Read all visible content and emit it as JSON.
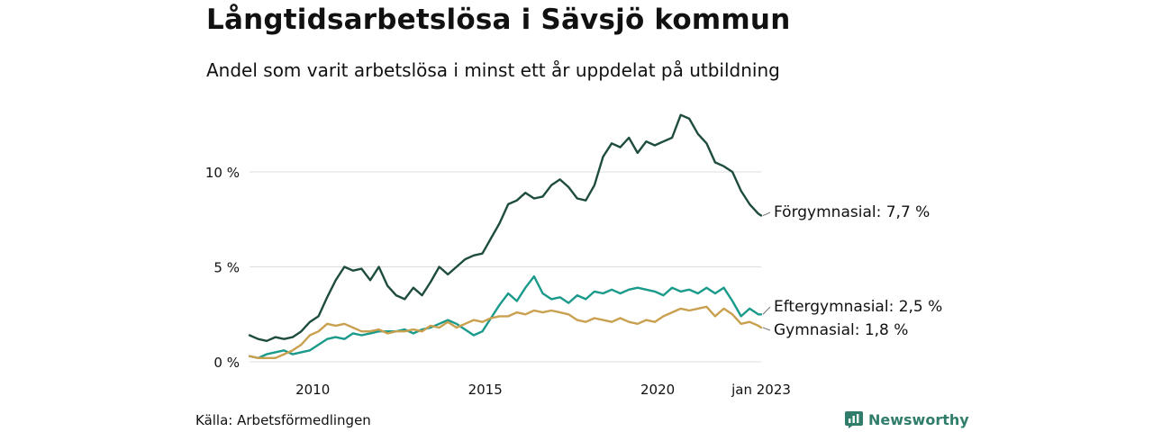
{
  "header": {
    "title": "Långtidsarbetslösa i Sävsjö kommun",
    "subtitle": "Andel som varit arbetslösa i minst ett år uppdelat på utbildning"
  },
  "footer": {
    "source": "Källa: Arbetsförmedlingen",
    "brand": "Newsworthy"
  },
  "colors": {
    "forgymnasial": "#1e4d3e",
    "eftergymnasial": "#1a9a8a",
    "gymnasial": "#c9a04f",
    "grid": "#dddddd",
    "brand": "#2f7d6a"
  },
  "chart_data": {
    "type": "line",
    "x_unit": "month",
    "x_range": [
      "2008-03",
      "2023-01"
    ],
    "y_unit": "%",
    "ylim": [
      0,
      14
    ],
    "y_ticks": [
      {
        "value": 0,
        "label": "0 %"
      },
      {
        "value": 5,
        "label": "5 %"
      },
      {
        "value": 10,
        "label": "10 %"
      }
    ],
    "x_ticks": [
      {
        "value": "2010-01",
        "label": "2010"
      },
      {
        "value": "2015-01",
        "label": "2015"
      },
      {
        "value": "2020-01",
        "label": "2020"
      },
      {
        "value": "2023-01",
        "label": "jan 2023"
      }
    ],
    "grid": true,
    "legend": "end-labels",
    "series": [
      {
        "key": "forgymnasial",
        "name": "Förgymnasial",
        "end_label": "Förgymnasial: 7,7 %",
        "color": "#1e4d3e",
        "points": [
          [
            "2008-03",
            1.4
          ],
          [
            "2008-06",
            1.2
          ],
          [
            "2008-09",
            1.1
          ],
          [
            "2008-12",
            1.3
          ],
          [
            "2009-03",
            1.2
          ],
          [
            "2009-06",
            1.3
          ],
          [
            "2009-09",
            1.6
          ],
          [
            "2009-12",
            2.1
          ],
          [
            "2010-03",
            2.4
          ],
          [
            "2010-06",
            3.4
          ],
          [
            "2010-09",
            4.3
          ],
          [
            "2010-12",
            5.0
          ],
          [
            "2011-03",
            4.8
          ],
          [
            "2011-06",
            4.9
          ],
          [
            "2011-09",
            4.3
          ],
          [
            "2011-12",
            5.0
          ],
          [
            "2012-03",
            4.0
          ],
          [
            "2012-06",
            3.5
          ],
          [
            "2012-09",
            3.3
          ],
          [
            "2012-12",
            3.9
          ],
          [
            "2013-03",
            3.5
          ],
          [
            "2013-06",
            4.2
          ],
          [
            "2013-09",
            5.0
          ],
          [
            "2013-12",
            4.6
          ],
          [
            "2014-03",
            5.0
          ],
          [
            "2014-06",
            5.4
          ],
          [
            "2014-09",
            5.6
          ],
          [
            "2014-12",
            5.7
          ],
          [
            "2015-03",
            6.5
          ],
          [
            "2015-06",
            7.3
          ],
          [
            "2015-09",
            8.3
          ],
          [
            "2015-12",
            8.5
          ],
          [
            "2016-03",
            8.9
          ],
          [
            "2016-06",
            8.6
          ],
          [
            "2016-09",
            8.7
          ],
          [
            "2016-12",
            9.3
          ],
          [
            "2017-03",
            9.6
          ],
          [
            "2017-06",
            9.2
          ],
          [
            "2017-09",
            8.6
          ],
          [
            "2017-12",
            8.5
          ],
          [
            "2018-03",
            9.3
          ],
          [
            "2018-06",
            10.8
          ],
          [
            "2018-09",
            11.5
          ],
          [
            "2018-12",
            11.3
          ],
          [
            "2019-03",
            11.8
          ],
          [
            "2019-06",
            11.0
          ],
          [
            "2019-09",
            11.6
          ],
          [
            "2019-12",
            11.4
          ],
          [
            "2020-03",
            11.6
          ],
          [
            "2020-06",
            11.8
          ],
          [
            "2020-09",
            13.0
          ],
          [
            "2020-12",
            12.8
          ],
          [
            "2021-03",
            12.0
          ],
          [
            "2021-06",
            11.5
          ],
          [
            "2021-09",
            10.5
          ],
          [
            "2021-12",
            10.3
          ],
          [
            "2022-03",
            10.0
          ],
          [
            "2022-06",
            9.0
          ],
          [
            "2022-09",
            8.3
          ],
          [
            "2022-12",
            7.8
          ],
          [
            "2023-01",
            7.7
          ]
        ]
      },
      {
        "key": "eftergymnasial",
        "name": "Eftergymnasial",
        "end_label": "Eftergymnasial: 2,5 %",
        "color": "#1a9a8a",
        "points": [
          [
            "2008-03",
            0.3
          ],
          [
            "2008-06",
            0.2
          ],
          [
            "2008-09",
            0.4
          ],
          [
            "2008-12",
            0.5
          ],
          [
            "2009-03",
            0.6
          ],
          [
            "2009-06",
            0.4
          ],
          [
            "2009-09",
            0.5
          ],
          [
            "2009-12",
            0.6
          ],
          [
            "2010-03",
            0.9
          ],
          [
            "2010-06",
            1.2
          ],
          [
            "2010-09",
            1.3
          ],
          [
            "2010-12",
            1.2
          ],
          [
            "2011-03",
            1.5
          ],
          [
            "2011-06",
            1.4
          ],
          [
            "2011-09",
            1.5
          ],
          [
            "2011-12",
            1.6
          ],
          [
            "2012-03",
            1.6
          ],
          [
            "2012-06",
            1.6
          ],
          [
            "2012-09",
            1.7
          ],
          [
            "2012-12",
            1.5
          ],
          [
            "2013-03",
            1.7
          ],
          [
            "2013-06",
            1.8
          ],
          [
            "2013-09",
            2.0
          ],
          [
            "2013-12",
            2.2
          ],
          [
            "2014-03",
            2.0
          ],
          [
            "2014-06",
            1.7
          ],
          [
            "2014-09",
            1.4
          ],
          [
            "2014-12",
            1.6
          ],
          [
            "2015-03",
            2.3
          ],
          [
            "2015-06",
            3.0
          ],
          [
            "2015-09",
            3.6
          ],
          [
            "2015-12",
            3.2
          ],
          [
            "2016-03",
            3.9
          ],
          [
            "2016-06",
            4.5
          ],
          [
            "2016-09",
            3.6
          ],
          [
            "2016-12",
            3.3
          ],
          [
            "2017-03",
            3.4
          ],
          [
            "2017-06",
            3.1
          ],
          [
            "2017-09",
            3.5
          ],
          [
            "2017-12",
            3.3
          ],
          [
            "2018-03",
            3.7
          ],
          [
            "2018-06",
            3.6
          ],
          [
            "2018-09",
            3.8
          ],
          [
            "2018-12",
            3.6
          ],
          [
            "2019-03",
            3.8
          ],
          [
            "2019-06",
            3.9
          ],
          [
            "2019-09",
            3.8
          ],
          [
            "2019-12",
            3.7
          ],
          [
            "2020-03",
            3.5
          ],
          [
            "2020-06",
            3.9
          ],
          [
            "2020-09",
            3.7
          ],
          [
            "2020-12",
            3.8
          ],
          [
            "2021-03",
            3.6
          ],
          [
            "2021-06",
            3.9
          ],
          [
            "2021-09",
            3.6
          ],
          [
            "2021-12",
            3.9
          ],
          [
            "2022-03",
            3.2
          ],
          [
            "2022-06",
            2.4
          ],
          [
            "2022-09",
            2.8
          ],
          [
            "2022-12",
            2.5
          ],
          [
            "2023-01",
            2.5
          ]
        ]
      },
      {
        "key": "gymnasial",
        "name": "Gymnasial",
        "end_label": "Gymnasial: 1,8 %",
        "color": "#c9a04f",
        "points": [
          [
            "2008-03",
            0.3
          ],
          [
            "2008-06",
            0.2
          ],
          [
            "2008-09",
            0.2
          ],
          [
            "2008-12",
            0.2
          ],
          [
            "2009-03",
            0.4
          ],
          [
            "2009-06",
            0.6
          ],
          [
            "2009-09",
            0.9
          ],
          [
            "2009-12",
            1.4
          ],
          [
            "2010-03",
            1.6
          ],
          [
            "2010-06",
            2.0
          ],
          [
            "2010-09",
            1.9
          ],
          [
            "2010-12",
            2.0
          ],
          [
            "2011-03",
            1.8
          ],
          [
            "2011-06",
            1.6
          ],
          [
            "2011-09",
            1.6
          ],
          [
            "2011-12",
            1.7
          ],
          [
            "2012-03",
            1.5
          ],
          [
            "2012-06",
            1.6
          ],
          [
            "2012-09",
            1.6
          ],
          [
            "2012-12",
            1.7
          ],
          [
            "2013-03",
            1.6
          ],
          [
            "2013-06",
            1.9
          ],
          [
            "2013-09",
            1.8
          ],
          [
            "2013-12",
            2.1
          ],
          [
            "2014-03",
            1.8
          ],
          [
            "2014-06",
            2.0
          ],
          [
            "2014-09",
            2.2
          ],
          [
            "2014-12",
            2.1
          ],
          [
            "2015-03",
            2.3
          ],
          [
            "2015-06",
            2.4
          ],
          [
            "2015-09",
            2.4
          ],
          [
            "2015-12",
            2.6
          ],
          [
            "2016-03",
            2.5
          ],
          [
            "2016-06",
            2.7
          ],
          [
            "2016-09",
            2.6
          ],
          [
            "2016-12",
            2.7
          ],
          [
            "2017-03",
            2.6
          ],
          [
            "2017-06",
            2.5
          ],
          [
            "2017-09",
            2.2
          ],
          [
            "2017-12",
            2.1
          ],
          [
            "2018-03",
            2.3
          ],
          [
            "2018-06",
            2.2
          ],
          [
            "2018-09",
            2.1
          ],
          [
            "2018-12",
            2.3
          ],
          [
            "2019-03",
            2.1
          ],
          [
            "2019-06",
            2.0
          ],
          [
            "2019-09",
            2.2
          ],
          [
            "2019-12",
            2.1
          ],
          [
            "2020-03",
            2.4
          ],
          [
            "2020-06",
            2.6
          ],
          [
            "2020-09",
            2.8
          ],
          [
            "2020-12",
            2.7
          ],
          [
            "2021-03",
            2.8
          ],
          [
            "2021-06",
            2.9
          ],
          [
            "2021-09",
            2.4
          ],
          [
            "2021-12",
            2.8
          ],
          [
            "2022-03",
            2.5
          ],
          [
            "2022-06",
            2.0
          ],
          [
            "2022-09",
            2.1
          ],
          [
            "2022-12",
            1.9
          ],
          [
            "2023-01",
            1.8
          ]
        ]
      }
    ]
  }
}
